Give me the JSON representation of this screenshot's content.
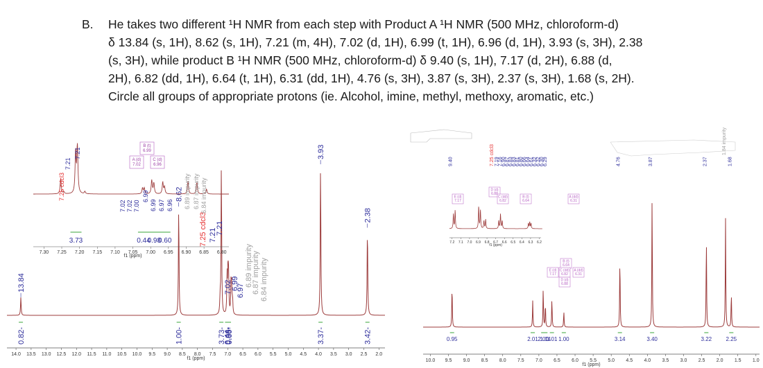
{
  "question": {
    "marker": "B.",
    "lines": [
      "He takes two different ¹H NMR from each step with Product A ¹H NMR (500 MHz, chloroform-d)",
      "δ 13.84 (s, 1H), 8.62 (s, 1H), 7.21 (m, 4H), 7.02 (d, 1H), 6.99 (t, 1H), 6.96 (d, 1H), 3.93 (s, 3H), 2.38",
      "(s, 3H), while product B ¹H NMR (500 MHz, chloroform-d) δ 9.40 (s, 1H), 7.17 (d, 2H), 6.88 (d,",
      "2H), 6.82 (dd, 1H), 6.64 (t, 1H), 6.31 (dd, 1H), 4.76 (s, 3H), 3.87 (s, 3H), 2.37 (s, 3H), 1.68 (s, 2H).",
      "Circle all groups of appropriate protons (ie. Alcohol, imine, methyl, methoxy, aromatic, etc.)"
    ]
  },
  "colors": {
    "spectrum_line": "#9c3b3b",
    "peak_label": "#2d2d9b",
    "solvent_label": "#e53030",
    "impurity_label": "#a0a0a0",
    "integral": "#3aa43a",
    "box": "#b55ec2"
  },
  "chart_data": [
    {
      "type": "line",
      "title": "Product A 1H NMR (500 MHz, chloroform-d)",
      "xlabel": "f1 (ppm)",
      "xlim": [
        14.3,
        1.8
      ],
      "x_ticks": [
        "14.0",
        "13.5",
        "13.0",
        "12.5",
        "12.0",
        "11.5",
        "11.0",
        "10.5",
        "10.0",
        "9.5",
        "9.0",
        "8.5",
        "8.0",
        "7.5",
        "7.0",
        "6.5",
        "6.0",
        "5.5",
        "5.0",
        "4.5",
        "4.0",
        "3.5",
        "3.0",
        "2.5",
        "2.0"
      ],
      "peaks": [
        {
          "ppm": 13.84,
          "label": "13.84",
          "rel_height": 0.12
        },
        {
          "ppm": 8.62,
          "label": "8.62",
          "rel_height": 0.72
        },
        {
          "ppm": 7.25,
          "label": "7.25 cdcl3",
          "rel_height": 0.1,
          "type": "solvent"
        },
        {
          "ppm": 7.21,
          "label": "7.21",
          "rel_height": 1.0
        },
        {
          "ppm": 7.02,
          "label": "7.02",
          "rel_height": 0.25
        },
        {
          "ppm": 6.99,
          "label": "6.99",
          "rel_height": 0.3
        },
        {
          "ppm": 6.97,
          "label": "6.97",
          "rel_height": 0.22
        },
        {
          "ppm": 6.89,
          "label": "6.89 impurity",
          "rel_height": 0.2,
          "type": "impurity"
        },
        {
          "ppm": 6.87,
          "label": "6.87 impurity",
          "rel_height": 0.18,
          "type": "impurity"
        },
        {
          "ppm": 6.84,
          "label": "6.84 impurity",
          "rel_height": 0.1,
          "type": "impurity"
        },
        {
          "ppm": 3.93,
          "label": "3.93",
          "rel_height": 1.0
        },
        {
          "ppm": 2.38,
          "label": "2.38",
          "rel_height": 0.58
        }
      ],
      "integrals": [
        {
          "ppm": 13.84,
          "value": "0.82"
        },
        {
          "ppm": 8.62,
          "value": "1.00"
        },
        {
          "ppm": 7.21,
          "value": "3.73"
        },
        {
          "ppm": 7.02,
          "value": "0.44"
        },
        {
          "ppm": 6.99,
          "value": "0.98"
        },
        {
          "ppm": 6.96,
          "value": "0.60"
        },
        {
          "ppm": 3.93,
          "value": "3.37"
        },
        {
          "ppm": 2.38,
          "value": "3.42"
        }
      ],
      "inset": {
        "xlim": [
          7.33,
          6.78
        ],
        "x_ticks": [
          "7.30",
          "7.25",
          "7.20",
          "7.15",
          "7.10",
          "7.05",
          "7.00",
          "6.95",
          "6.90",
          "6.85",
          "6.80"
        ],
        "xlabel": "f1 (ppm)",
        "peak_labels": [
          "7.25 cdcl3",
          "7.21",
          "7.21",
          "7.02",
          "7.02",
          "7.00",
          "6.99",
          "6.99",
          "6.97",
          "6.96",
          "6.89 impurity",
          "6.87 impurity",
          "6.84 impurity"
        ],
        "multiplet_boxes": [
          {
            "label": "A (d)",
            "shift": "7.02"
          },
          {
            "label": "B (t)",
            "shift": "6.99"
          },
          {
            "label": "C (d)",
            "shift": "6.96"
          }
        ],
        "integrals": [
          "3.73",
          "0.44",
          "0.98",
          "0.60"
        ]
      }
    },
    {
      "type": "line",
      "title": "Product B 1H NMR (500 MHz, chloroform-d)",
      "xlabel": "f1 (ppm)",
      "xlim": [
        10.2,
        0.9
      ],
      "x_ticks": [
        "10.0",
        "9.5",
        "9.0",
        "8.5",
        "8.0",
        "7.5",
        "7.0",
        "6.5",
        "6.0",
        "5.5",
        "5.0",
        "4.5",
        "4.0",
        "3.5",
        "3.0",
        "2.5",
        "2.0",
        "1.5",
        "1.0"
      ],
      "peak_labels": [
        "9.40",
        "7.25 cdcl3",
        "7.19",
        "7.16",
        "6.90",
        "6.87",
        "6.83",
        "6.83",
        "6.81",
        "6.80",
        "6.66",
        "6.64",
        "6.61",
        "6.32",
        "6.32",
        "6.30",
        "6.29",
        "4.76",
        "3.87",
        "2.37",
        "1.84 impurity",
        "1.68"
      ],
      "peaks": [
        {
          "ppm": 9.4,
          "rel_height": 0.32
        },
        {
          "ppm": 7.17,
          "rel_height": 0.2
        },
        {
          "ppm": 6.88,
          "rel_height": 0.3
        },
        {
          "ppm": 6.82,
          "rel_height": 0.18
        },
        {
          "ppm": 6.64,
          "rel_height": 0.22
        },
        {
          "ppm": 6.31,
          "rel_height": 0.12
        },
        {
          "ppm": 4.76,
          "rel_height": 0.54
        },
        {
          "ppm": 3.87,
          "rel_height": 1.0
        },
        {
          "ppm": 2.37,
          "rel_height": 0.69
        },
        {
          "ppm": 1.84,
          "rel_height": 0.82
        },
        {
          "ppm": 1.68,
          "rel_height": 0.26
        }
      ],
      "integrals": [
        {
          "ppm": 9.4,
          "value": "0.95"
        },
        {
          "ppm": 7.17,
          "value": "2.01"
        },
        {
          "ppm": 6.88,
          "value": "2.00"
        },
        {
          "ppm": 6.82,
          "value": "1.14"
        },
        {
          "ppm": 6.64,
          "value": "1.01"
        },
        {
          "ppm": 6.31,
          "value": "1.00"
        },
        {
          "ppm": 4.76,
          "value": "3.14"
        },
        {
          "ppm": 3.87,
          "value": "3.40"
        },
        {
          "ppm": 2.37,
          "value": "3.22"
        },
        {
          "ppm": 1.68,
          "value": "2.25"
        }
      ],
      "multiplet_boxes": [
        {
          "label": "E (d)",
          "shift": "7.17"
        },
        {
          "label": "D (d)",
          "shift": "6.88"
        },
        {
          "label": "C (dd)",
          "shift": "6.82"
        },
        {
          "label": "B (t)",
          "shift": "6.64"
        },
        {
          "label": "A (dd)",
          "shift": "6.31"
        }
      ],
      "inset": {
        "xlim": [
          7.23,
          6.18
        ],
        "x_ticks": [
          "7.2",
          "7.1",
          "7.0",
          "6.9",
          "6.8",
          "6.7",
          "6.6",
          "6.5",
          "6.4",
          "6.3",
          "6.2"
        ],
        "xlabel": "f1 (ppm)"
      }
    }
  ]
}
